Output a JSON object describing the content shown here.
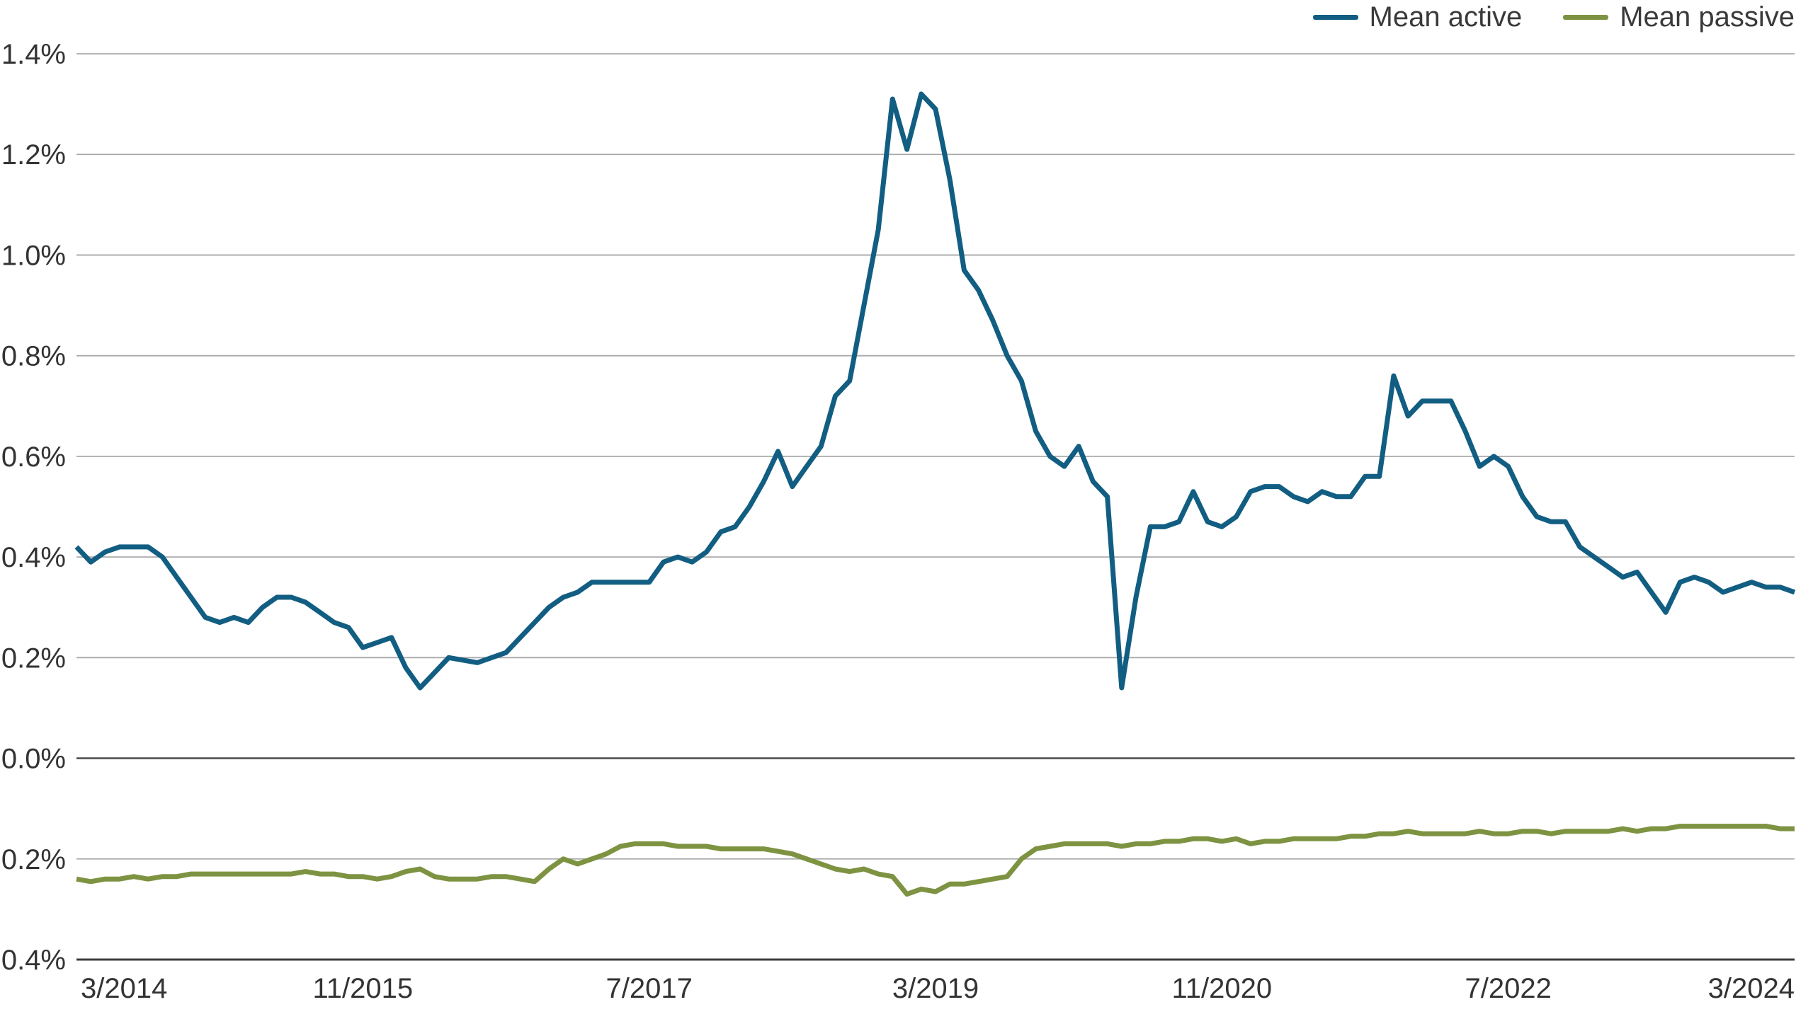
{
  "chart_data": {
    "type": "line",
    "x_interval": "monthly",
    "x_range": [
      "3/2014",
      "3/2024"
    ],
    "x_tick_labels": [
      "3/2014",
      "11/2015",
      "7/2017",
      "3/2019",
      "11/2020",
      "7/2022",
      "3/2024"
    ],
    "y_tick_labels": [
      "1.4%",
      "1.2%",
      "1.0%",
      "0.8%",
      "0.6%",
      "0.4%",
      "0.2%",
      "0.0%",
      "-0.2%",
      "-0.4%"
    ],
    "ylim": [
      -0.4,
      1.4
    ],
    "y_unit": "%",
    "grid": "horizontal",
    "legend_position": "top-right",
    "grid_color": "#A9A9A9",
    "zero_line_color": "#4F4F4F",
    "axis_line_color": "#3C3C3C",
    "axis_text_color": "#333333",
    "series": [
      {
        "name": "Mean active",
        "color": "#125E82",
        "values": [
          0.42,
          0.39,
          0.41,
          0.42,
          0.42,
          0.42,
          0.4,
          0.36,
          0.32,
          0.28,
          0.27,
          0.28,
          0.27,
          0.3,
          0.32,
          0.32,
          0.31,
          0.29,
          0.27,
          0.26,
          0.22,
          0.23,
          0.24,
          0.18,
          0.14,
          0.17,
          0.2,
          0.195,
          0.19,
          0.2,
          0.21,
          0.24,
          0.27,
          0.3,
          0.32,
          0.33,
          0.35,
          0.35,
          0.35,
          0.35,
          0.35,
          0.39,
          0.4,
          0.39,
          0.41,
          0.45,
          0.46,
          0.5,
          0.55,
          0.61,
          0.54,
          0.58,
          0.62,
          0.72,
          0.75,
          0.9,
          1.05,
          1.31,
          1.21,
          1.32,
          1.29,
          1.15,
          0.97,
          0.93,
          0.87,
          0.8,
          0.75,
          0.65,
          0.6,
          0.58,
          0.62,
          0.55,
          0.52,
          0.14,
          0.32,
          0.46,
          0.46,
          0.47,
          0.53,
          0.47,
          0.46,
          0.48,
          0.53,
          0.54,
          0.54,
          0.52,
          0.51,
          0.53,
          0.52,
          0.52,
          0.56,
          0.56,
          0.76,
          0.68,
          0.71,
          0.71,
          0.71,
          0.65,
          0.58,
          0.6,
          0.58,
          0.52,
          0.48,
          0.47,
          0.47,
          0.42,
          0.4,
          0.38,
          0.36,
          0.37,
          0.33,
          0.29,
          0.35,
          0.36,
          0.35,
          0.33,
          0.34,
          0.35,
          0.34,
          0.34,
          0.33
        ]
      },
      {
        "name": "Mean passive",
        "color": "#7E9342",
        "values": [
          -0.24,
          -0.245,
          -0.24,
          -0.24,
          -0.235,
          -0.24,
          -0.235,
          -0.235,
          -0.23,
          -0.23,
          -0.23,
          -0.23,
          -0.23,
          -0.23,
          -0.23,
          -0.23,
          -0.225,
          -0.23,
          -0.23,
          -0.235,
          -0.235,
          -0.24,
          -0.235,
          -0.225,
          -0.22,
          -0.235,
          -0.24,
          -0.24,
          -0.24,
          -0.235,
          -0.235,
          -0.24,
          -0.245,
          -0.22,
          -0.2,
          -0.21,
          -0.2,
          -0.19,
          -0.175,
          -0.17,
          -0.17,
          -0.17,
          -0.175,
          -0.175,
          -0.175,
          -0.18,
          -0.18,
          -0.18,
          -0.18,
          -0.185,
          -0.19,
          -0.2,
          -0.21,
          -0.22,
          -0.225,
          -0.22,
          -0.23,
          -0.235,
          -0.27,
          -0.26,
          -0.265,
          -0.25,
          -0.25,
          -0.245,
          -0.24,
          -0.235,
          -0.2,
          -0.18,
          -0.175,
          -0.17,
          -0.17,
          -0.17,
          -0.17,
          -0.175,
          -0.17,
          -0.17,
          -0.165,
          -0.165,
          -0.16,
          -0.16,
          -0.165,
          -0.16,
          -0.17,
          -0.165,
          -0.165,
          -0.16,
          -0.16,
          -0.16,
          -0.16,
          -0.155,
          -0.155,
          -0.15,
          -0.15,
          -0.145,
          -0.15,
          -0.15,
          -0.15,
          -0.15,
          -0.145,
          -0.15,
          -0.15,
          -0.145,
          -0.145,
          -0.15,
          -0.145,
          -0.145,
          -0.145,
          -0.145,
          -0.14,
          -0.145,
          -0.14,
          -0.14,
          -0.135,
          -0.135,
          -0.135,
          -0.135,
          -0.135,
          -0.135,
          -0.135,
          -0.14,
          -0.14
        ]
      }
    ]
  }
}
